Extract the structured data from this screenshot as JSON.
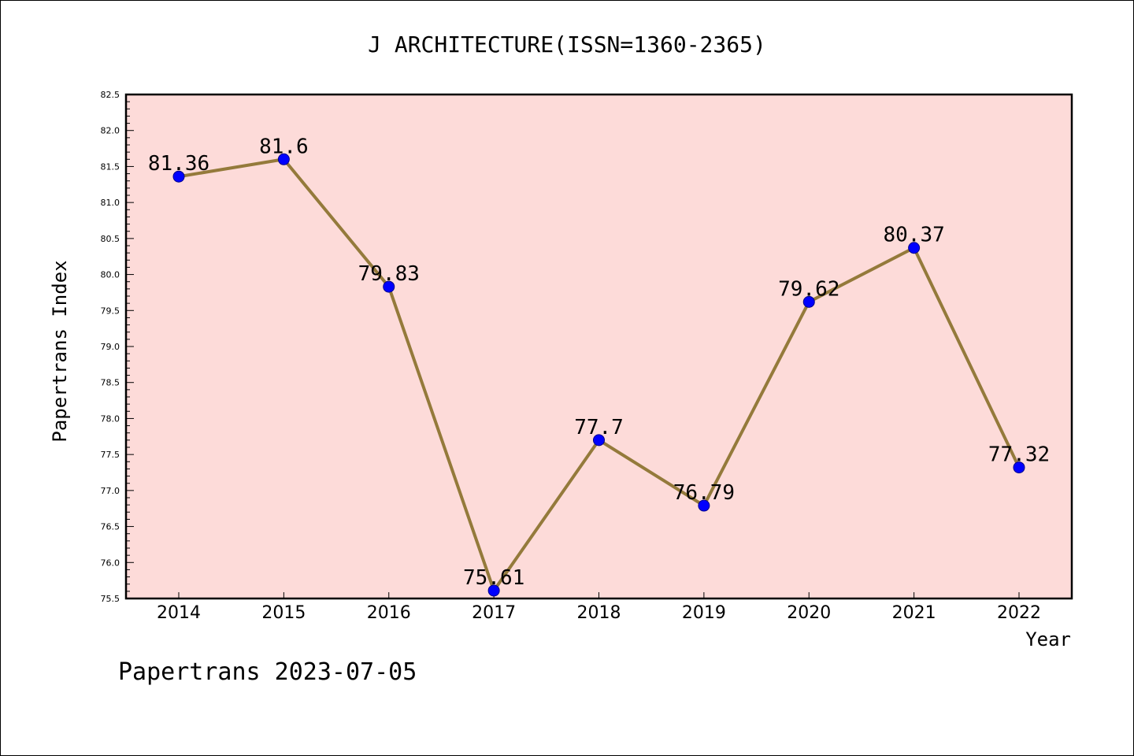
{
  "chart_data": {
    "type": "line",
    "title": "J ARCHITECTURE(ISSN=1360-2365)",
    "xlabel": "Year",
    "ylabel": "Papertrans Index",
    "x": [
      "2014",
      "2015",
      "2016",
      "2017",
      "2018",
      "2019",
      "2020",
      "2021",
      "2022"
    ],
    "series": [
      {
        "values": [
          81.36,
          81.6,
          79.83,
          75.61,
          77.7,
          76.79,
          79.62,
          80.37,
          77.32
        ],
        "labels": [
          "81.36",
          "81.6",
          "79.83",
          "75.61",
          "77.7",
          "76.79",
          "79.62",
          "80.37",
          "77.32"
        ]
      }
    ],
    "ylim": [
      75.5,
      82.5
    ],
    "yticks": [
      "75.5",
      "76.0",
      "76.5",
      "77.0",
      "77.5",
      "78.0",
      "78.5",
      "79.0",
      "79.5",
      "80.0",
      "80.5",
      "81.0",
      "81.5",
      "82.0",
      "82.5"
    ],
    "grid": false,
    "colors": {
      "plot_background": "#fddbd9",
      "line": "#947a3b",
      "marker_fill": "#0000ff",
      "marker_edge": "#00008b"
    }
  },
  "footer": "Papertrans 2023-07-05"
}
